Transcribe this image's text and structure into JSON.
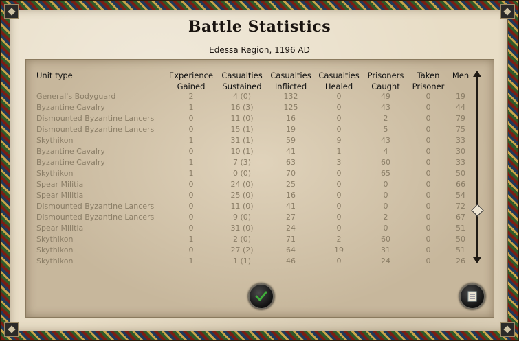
{
  "window": {
    "title": "Battle Statistics",
    "subtitle": "Edessa Region, 1196 AD"
  },
  "table": {
    "headers": [
      {
        "line1": "Unit type",
        "line2": ""
      },
      {
        "line1": "Experience",
        "line2": "Gained"
      },
      {
        "line1": "Casualties",
        "line2": "Sustained"
      },
      {
        "line1": "Casualties",
        "line2": "Inflicted"
      },
      {
        "line1": "Casualties",
        "line2": "Healed"
      },
      {
        "line1": "Prisoners",
        "line2": "Caught"
      },
      {
        "line1": "Taken",
        "line2": "Prisoner"
      },
      {
        "line1": "Men",
        "line2": ""
      }
    ],
    "rows": [
      {
        "unit": "General's Bodyguard",
        "exp": "2",
        "sustained": "4 (0)",
        "inflicted": "132",
        "healed": "0",
        "caught": "49",
        "taken": "0",
        "men": "19"
      },
      {
        "unit": "Byzantine Cavalry",
        "exp": "1",
        "sustained": "16 (3)",
        "inflicted": "125",
        "healed": "0",
        "caught": "43",
        "taken": "0",
        "men": "44"
      },
      {
        "unit": "Dismounted Byzantine Lancers",
        "exp": "0",
        "sustained": "11 (0)",
        "inflicted": "16",
        "healed": "0",
        "caught": "2",
        "taken": "0",
        "men": "79"
      },
      {
        "unit": "Dismounted Byzantine Lancers",
        "exp": "0",
        "sustained": "15 (1)",
        "inflicted": "19",
        "healed": "0",
        "caught": "5",
        "taken": "0",
        "men": "75"
      },
      {
        "unit": "Skythikon",
        "exp": "1",
        "sustained": "31 (1)",
        "inflicted": "59",
        "healed": "9",
        "caught": "43",
        "taken": "0",
        "men": "33"
      },
      {
        "unit": "Byzantine Cavalry",
        "exp": "0",
        "sustained": "10 (1)",
        "inflicted": "41",
        "healed": "1",
        "caught": "4",
        "taken": "0",
        "men": "30"
      },
      {
        "unit": "Byzantine Cavalry",
        "exp": "1",
        "sustained": "7 (3)",
        "inflicted": "63",
        "healed": "3",
        "caught": "60",
        "taken": "0",
        "men": "33"
      },
      {
        "unit": "Skythikon",
        "exp": "1",
        "sustained": "0 (0)",
        "inflicted": "70",
        "healed": "0",
        "caught": "65",
        "taken": "0",
        "men": "50"
      },
      {
        "unit": "Spear Militia",
        "exp": "0",
        "sustained": "24 (0)",
        "inflicted": "25",
        "healed": "0",
        "caught": "0",
        "taken": "0",
        "men": "66"
      },
      {
        "unit": "Spear Militia",
        "exp": "0",
        "sustained": "25 (0)",
        "inflicted": "16",
        "healed": "0",
        "caught": "0",
        "taken": "0",
        "men": "54"
      },
      {
        "unit": "Dismounted Byzantine Lancers",
        "exp": "0",
        "sustained": "11 (0)",
        "inflicted": "41",
        "healed": "0",
        "caught": "0",
        "taken": "0",
        "men": "72"
      },
      {
        "unit": "Dismounted Byzantine Lancers",
        "exp": "0",
        "sustained": "9 (0)",
        "inflicted": "27",
        "healed": "0",
        "caught": "2",
        "taken": "0",
        "men": "67"
      },
      {
        "unit": "Spear Militia",
        "exp": "0",
        "sustained": "31 (0)",
        "inflicted": "24",
        "healed": "0",
        "caught": "0",
        "taken": "0",
        "men": "51"
      },
      {
        "unit": "Skythikon",
        "exp": "1",
        "sustained": "2 (0)",
        "inflicted": "71",
        "healed": "2",
        "caught": "60",
        "taken": "0",
        "men": "50"
      },
      {
        "unit": "Skythikon",
        "exp": "0",
        "sustained": "27 (2)",
        "inflicted": "64",
        "healed": "19",
        "caught": "31",
        "taken": "0",
        "men": "51"
      },
      {
        "unit": "Skythikon",
        "exp": "1",
        "sustained": "1 (1)",
        "inflicted": "46",
        "healed": "0",
        "caught": "24",
        "taken": "0",
        "men": "26"
      }
    ]
  },
  "buttons": {
    "confirm_icon": "checkmark-icon",
    "scroll_icon": "scroll-document-icon"
  },
  "colors": {
    "row_text": "#8a7d66",
    "header_text": "#111111",
    "panel": "#c7b79c",
    "parchment": "#e8ddc6",
    "confirm_check": "#3fae3a"
  }
}
